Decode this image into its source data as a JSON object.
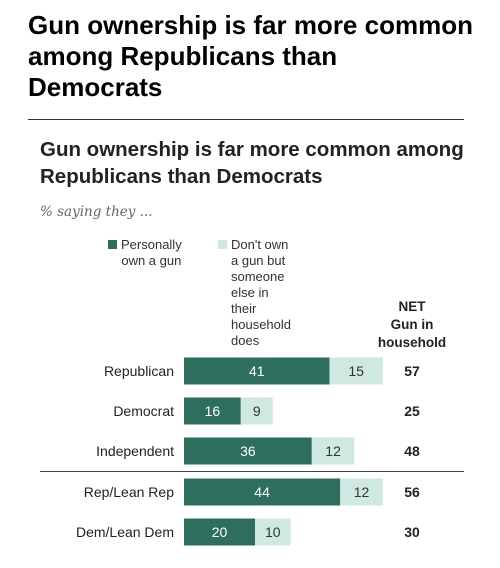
{
  "headline": "Gun ownership is far more common among Republicans than Democrats",
  "chart_data": {
    "type": "bar",
    "stacked": true,
    "orientation": "horizontal",
    "title": "Gun ownership is far more common among Republicans than Democrats",
    "subtitle": "% saying they ...",
    "categories": [
      "Republican",
      "Democrat",
      "Independent",
      "Rep/Lean Rep",
      "Dem/Lean Dem"
    ],
    "series": [
      {
        "name": "Personally own a gun",
        "values": [
          41,
          16,
          36,
          44,
          20
        ],
        "color": "#2d6e5e"
      },
      {
        "name": "Don't own a gun but someone else in their household does",
        "values": [
          15,
          9,
          12,
          12,
          10
        ],
        "color": "#cfe8e2"
      }
    ],
    "net": {
      "header": "NET Gun in household",
      "values": [
        57,
        25,
        48,
        56,
        30
      ]
    },
    "group_separator_after_index": 2,
    "grid": false,
    "legend_position": "top"
  },
  "legend": {
    "items": [
      {
        "lines": [
          "Personally",
          "own a gun"
        ],
        "color": "#2d6e5e"
      },
      {
        "lines": [
          "Don't own a gun but",
          "someone else in their",
          "household does"
        ],
        "color": "#cfe8e2"
      }
    ]
  },
  "net_header_lines": [
    "NET",
    "Gun in",
    "household"
  ]
}
